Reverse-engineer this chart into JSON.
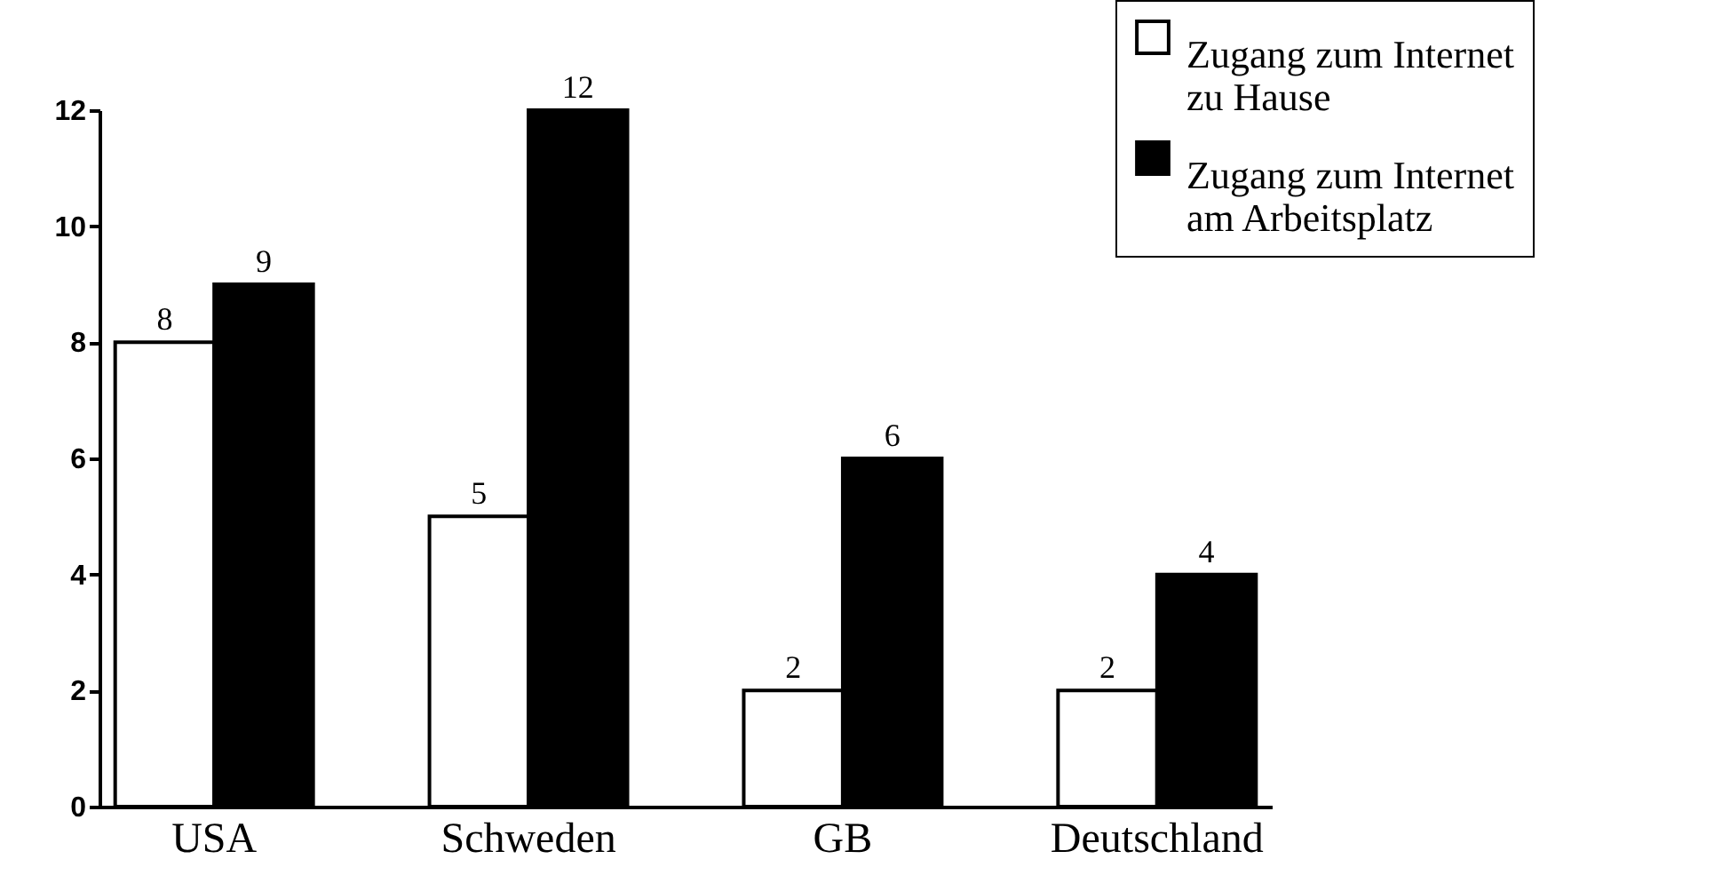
{
  "chart_data": {
    "type": "bar",
    "categories": [
      "USA",
      "Schweden",
      "GB",
      "Deutschland"
    ],
    "series": [
      {
        "name": "Zugang zum Internet zu Hause",
        "color": "#ffffff",
        "values": [
          8,
          5,
          2,
          2
        ]
      },
      {
        "name": "Zugang zum Internet am Arbeitsplatz",
        "color": "#000000",
        "values": [
          9,
          12,
          6,
          4
        ]
      }
    ],
    "ylim": [
      0,
      12
    ],
    "yticks": [
      0,
      2,
      4,
      6,
      8,
      10,
      12
    ],
    "grid": false,
    "legend": "top right",
    "data_labels": true
  }
}
